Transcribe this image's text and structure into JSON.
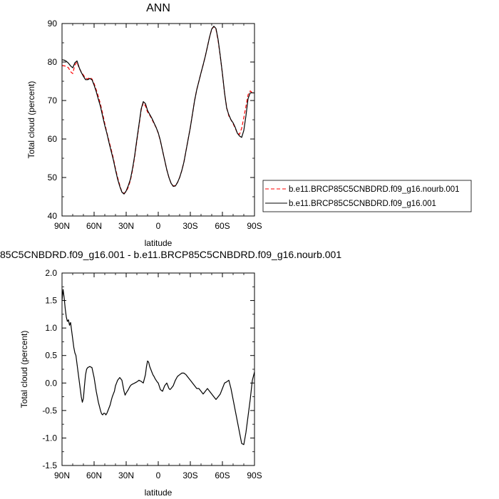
{
  "chart_data": [
    {
      "type": "line",
      "title": "ANN",
      "xlabel": "latitude",
      "ylabel": "Total cloud (percent)",
      "xlim": [
        90,
        -90
      ],
      "ylim": [
        40,
        90
      ],
      "x_ticks": [
        90,
        60,
        30,
        0,
        -30,
        -60,
        -90
      ],
      "x_tick_labels": [
        "90N",
        "60N",
        "30N",
        "0",
        "30S",
        "60S",
        "90S"
      ],
      "y_ticks": [
        40,
        50,
        60,
        70,
        80,
        90
      ],
      "y_tick_labels": [
        "40",
        "50",
        "60",
        "70",
        "80",
        "90"
      ],
      "grid": false,
      "legend": "right",
      "series": [
        {
          "name": "b.e11.BRCP85C5CNBDRD.f09_g16.nourb.001",
          "color": "#ff0000",
          "style": "dashed",
          "x": [
            90,
            88,
            86,
            84,
            82,
            80,
            78,
            76,
            74,
            72,
            70,
            68,
            66,
            64,
            62,
            60,
            58,
            56,
            54,
            52,
            50,
            48,
            46,
            44,
            42,
            40,
            38,
            36,
            34,
            32,
            30,
            28,
            26,
            24,
            22,
            20,
            18,
            16,
            14,
            12,
            10,
            8,
            6,
            4,
            2,
            0,
            -2,
            -4,
            -6,
            -8,
            -10,
            -12,
            -14,
            -16,
            -18,
            -20,
            -22,
            -24,
            -26,
            -28,
            -30,
            -32,
            -34,
            -36,
            -38,
            -40,
            -42,
            -44,
            -46,
            -48,
            -50,
            -52,
            -54,
            -56,
            -58,
            -60,
            -62,
            -64,
            -66,
            -68,
            -70,
            -72,
            -74,
            -76,
            -78,
            -80,
            -82,
            -84,
            -86,
            -88,
            -90
          ],
          "values": [
            79.1,
            79,
            78.9,
            78.5,
            77.5,
            77.0,
            79.2,
            80.0,
            78.4,
            77.4,
            76.6,
            75.8,
            75.6,
            76.0,
            75.6,
            74.4,
            72.8,
            71.0,
            69.0,
            66.6,
            64.0,
            61.6,
            59.4,
            57.3,
            55.0,
            52.3,
            50.0,
            48.0,
            46.2,
            45.9,
            46.3,
            47.5,
            49.3,
            52.0,
            55.5,
            59.5,
            63.5,
            67.5,
            69.4,
            68.6,
            67.0,
            66.2,
            65.2,
            64.0,
            63.0,
            61.5,
            59.5,
            57.0,
            54.5,
            52.0,
            50.0,
            48.5,
            47.8,
            47.9,
            48.7,
            50.0,
            51.8,
            54.0,
            57.0,
            60.0,
            63.0,
            66.5,
            70.0,
            72.8,
            75.0,
            77.2,
            79.3,
            81.5,
            84.0,
            86.5,
            88.5,
            89.2,
            88.5,
            85.5,
            81.5,
            77.0,
            72.0,
            68.2,
            66.0,
            65.0,
            64.0,
            62.8,
            61.5,
            61.2,
            62.8,
            65.5,
            68.5,
            71.5,
            72.5,
            72.0,
            71.8
          ]
        },
        {
          "name": "b.e11.BRCP85C5CNBDRD.f09_g16.001",
          "color": "#000000",
          "style": "solid",
          "x": [
            90,
            88,
            86,
            84,
            82,
            80,
            78,
            76,
            74,
            72,
            70,
            68,
            66,
            64,
            62,
            60,
            58,
            56,
            54,
            52,
            50,
            48,
            46,
            44,
            42,
            40,
            38,
            36,
            34,
            32,
            30,
            28,
            26,
            24,
            22,
            20,
            18,
            16,
            14,
            12,
            10,
            8,
            6,
            4,
            2,
            0,
            -2,
            -4,
            -6,
            -8,
            -10,
            -12,
            -14,
            -16,
            -18,
            -20,
            -22,
            -24,
            -26,
            -28,
            -30,
            -32,
            -34,
            -36,
            -38,
            -40,
            -42,
            -44,
            -46,
            -48,
            -50,
            -52,
            -54,
            -56,
            -58,
            -60,
            -62,
            -64,
            -66,
            -68,
            -70,
            -72,
            -74,
            -76,
            -78,
            -80,
            -82,
            -84,
            -86,
            -88,
            -90
          ],
          "values": [
            80.6,
            80.5,
            80.2,
            79.7,
            79.0,
            78.5,
            79.8,
            80.3,
            78.6,
            77.3,
            76.3,
            75.4,
            75.4,
            75.7,
            75.4,
            74.0,
            72.3,
            70.3,
            68.4,
            65.9,
            63.5,
            61.4,
            59.0,
            56.8,
            54.6,
            52.0,
            49.6,
            47.7,
            46.2,
            45.7,
            46.5,
            47.9,
            49.6,
            52.4,
            55.8,
            59.9,
            63.8,
            67.8,
            69.7,
            69.2,
            67.4,
            66.4,
            65.4,
            64.2,
            63.0,
            61.6,
            59.6,
            57.0,
            54.5,
            52.0,
            50.0,
            48.5,
            47.7,
            47.8,
            48.7,
            50.0,
            51.8,
            54.0,
            57.0,
            60.0,
            63.0,
            66.5,
            70.0,
            72.8,
            75.0,
            77.2,
            79.3,
            81.5,
            84.0,
            86.5,
            88.6,
            89.3,
            88.7,
            85.8,
            81.6,
            77.0,
            72.0,
            68.0,
            66.3,
            65.0,
            64.2,
            63.0,
            61.5,
            60.8,
            60.4,
            62.2,
            66.0,
            70.5,
            72.0,
            72.0,
            72.0
          ]
        }
      ]
    },
    {
      "type": "line",
      "title": "85C5CNBDRD.f09_g16.001 - b.e11.BRCP85C5CNBDRD.f09_g16.nourb.001",
      "xlabel": "latitude",
      "ylabel": "Total cloud (percent)",
      "xlim": [
        90,
        -90
      ],
      "ylim": [
        -1.5,
        2.0
      ],
      "x_ticks": [
        90,
        60,
        30,
        0,
        -30,
        -60,
        -90
      ],
      "x_tick_labels": [
        "90N",
        "60N",
        "30N",
        "0",
        "30S",
        "60S",
        "90S"
      ],
      "y_ticks": [
        -1.5,
        -1.0,
        -0.5,
        0.0,
        0.5,
        1.0,
        1.5,
        2.0
      ],
      "y_tick_labels": [
        "-1.5",
        "-1.0",
        "-0.5",
        "0.0",
        "0.5",
        "1.0",
        "1.5",
        "2.0"
      ],
      "grid": false,
      "series": [
        {
          "color": "#000000",
          "style": "solid",
          "x": [
            90,
            89,
            88,
            87,
            86,
            85,
            84,
            83,
            82,
            81,
            80,
            79,
            78,
            77,
            76,
            75,
            74,
            73,
            72,
            71,
            70,
            69,
            68,
            67,
            66,
            64,
            62,
            60,
            58,
            56,
            54,
            53,
            52,
            51,
            50,
            49,
            48,
            47,
            46,
            45,
            44,
            43,
            42,
            41,
            40,
            39,
            38,
            36,
            34,
            33,
            32,
            31,
            30,
            29,
            28,
            27,
            26,
            25,
            24,
            23,
            22,
            20,
            18,
            16,
            14,
            12,
            11,
            10,
            9,
            8,
            7,
            6,
            5,
            4,
            3,
            2,
            1,
            0,
            -2,
            -4,
            -6,
            -8,
            -9,
            -10,
            -11,
            -12,
            -14,
            -16,
            -18,
            -20,
            -22,
            -24,
            -26,
            -28,
            -30,
            -32,
            -34,
            -36,
            -38,
            -40,
            -42,
            -44,
            -46,
            -48,
            -50,
            -52,
            -54,
            -56,
            -58,
            -60,
            -62,
            -64,
            -66,
            -68,
            -70,
            -72,
            -74,
            -76,
            -78,
            -80,
            -82,
            -84,
            -86,
            -88,
            -90
          ],
          "values": [
            1.5,
            1.7,
            1.55,
            1.35,
            1.2,
            1.12,
            1.15,
            1.05,
            1.1,
            0.95,
            0.8,
            0.65,
            0.55,
            0.5,
            0.35,
            0.2,
            0.05,
            -0.1,
            -0.25,
            -0.35,
            -0.28,
            -0.05,
            0.15,
            0.25,
            0.28,
            0.3,
            0.28,
            0.1,
            -0.15,
            -0.35,
            -0.5,
            -0.56,
            -0.58,
            -0.55,
            -0.55,
            -0.58,
            -0.55,
            -0.5,
            -0.45,
            -0.4,
            -0.32,
            -0.25,
            -0.2,
            -0.15,
            -0.05,
            0.0,
            0.05,
            0.1,
            0.05,
            -0.05,
            -0.15,
            -0.22,
            -0.18,
            -0.15,
            -0.12,
            -0.08,
            -0.05,
            -0.03,
            -0.02,
            -0.01,
            0.0,
            0.02,
            0.05,
            0.03,
            0.0,
            0.15,
            0.3,
            0.4,
            0.38,
            0.3,
            0.25,
            0.2,
            0.15,
            0.12,
            0.08,
            0.05,
            0.02,
            0.0,
            -0.12,
            -0.15,
            -0.05,
            0.0,
            -0.05,
            -0.1,
            -0.12,
            -0.1,
            -0.05,
            0.05,
            0.12,
            0.15,
            0.18,
            0.18,
            0.15,
            0.1,
            0.05,
            0.0,
            -0.05,
            -0.1,
            -0.1,
            -0.15,
            -0.2,
            -0.15,
            -0.1,
            -0.15,
            -0.2,
            -0.25,
            -0.3,
            -0.25,
            -0.2,
            -0.1,
            0.0,
            0.02,
            0.05,
            -0.1,
            -0.3,
            -0.5,
            -0.7,
            -0.9,
            -1.1,
            -1.12,
            -0.9,
            -0.6,
            -0.3,
            0.05,
            0.2
          ]
        }
      ]
    }
  ]
}
